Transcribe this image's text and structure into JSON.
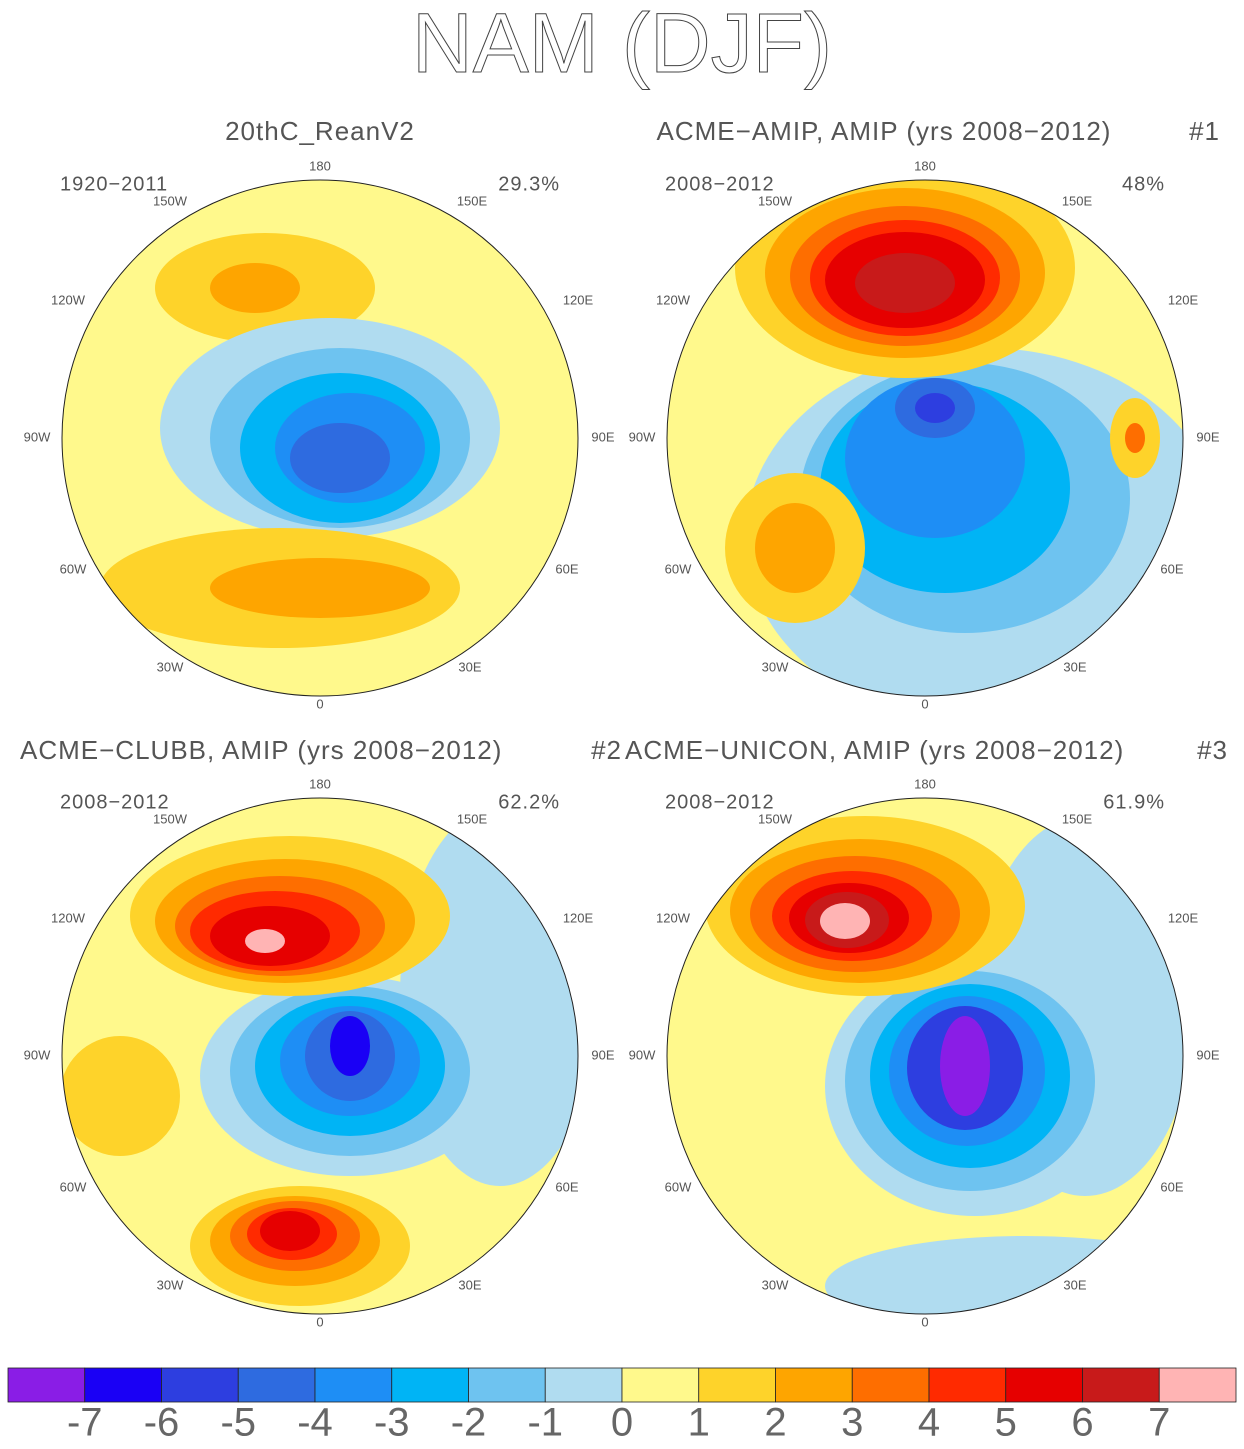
{
  "title": "NAM (DJF)",
  "lon_labels": [
    "180",
    "150E",
    "120E",
    "90E",
    "60E",
    "30E",
    "0",
    "30W",
    "60W",
    "90W",
    "120W",
    "150W"
  ],
  "panels": [
    {
      "title": "20thC_ReanV2",
      "period": "1920−2011",
      "percent": "29.3%"
    },
    {
      "title": "ACME−AMIP, AMIP (yrs 2008−2012)",
      "tag": "#1",
      "period": "2008−2012",
      "percent": "48%"
    },
    {
      "title": "ACME−CLUBB, AMIP (yrs 2008−2012)",
      "tag": "#2",
      "period": "2008−2012",
      "percent": "62.2%"
    },
    {
      "title": "ACME−UNICON, AMIP (yrs 2008−2012)",
      "tag": "#3",
      "period": "2008−2012",
      "percent": "61.9%"
    }
  ],
  "colorbar": {
    "colors": [
      "#8a1de6",
      "#1a00f5",
      "#2d3ee0",
      "#2e6be0",
      "#1e8ef5",
      "#00b4f5",
      "#6ec3f0",
      "#b0dcf0",
      "#fff98c",
      "#fed32a",
      "#fea500",
      "#fe6e00",
      "#ff2a00",
      "#e60000",
      "#c81a1a",
      "#ffb4b4"
    ],
    "ticks": [
      -7,
      -6,
      -5,
      -4,
      -3,
      -2,
      -1,
      0,
      1,
      2,
      3,
      4,
      5,
      6,
      7
    ]
  }
}
